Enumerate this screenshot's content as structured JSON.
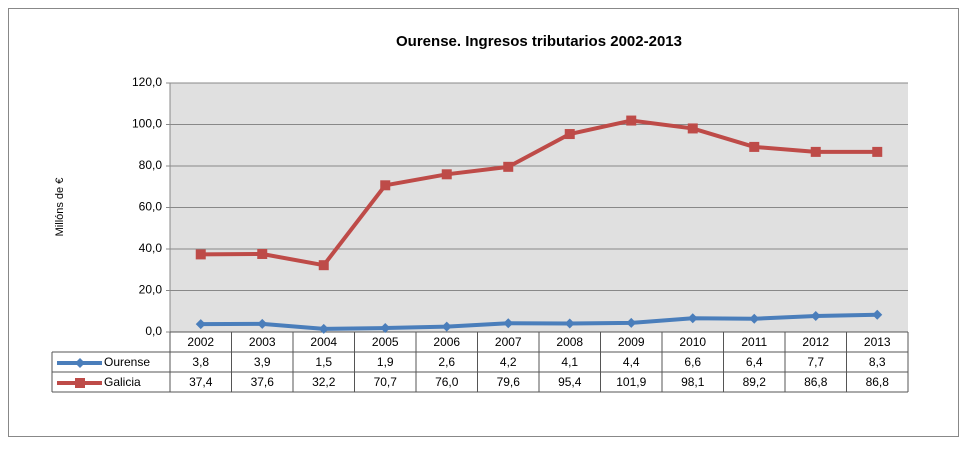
{
  "chart_data": {
    "type": "line",
    "title": "Ourense. Ingresos tributarios  2002-2013",
    "y_label": "Millóns de €",
    "categories": [
      "2002",
      "2003",
      "2004",
      "2005",
      "2006",
      "2007",
      "2008",
      "2009",
      "2010",
      "2011",
      "2012",
      "2013"
    ],
    "series": [
      {
        "name": "Ourense",
        "color": "#4a7ebb",
        "marker": "diamond",
        "values": [
          3.8,
          3.9,
          1.5,
          1.9,
          2.6,
          4.2,
          4.1,
          4.4,
          6.6,
          6.4,
          7.7,
          8.3
        ],
        "value_labels": [
          "3,8",
          "3,9",
          "1,5",
          "1,9",
          "2,6",
          "4,2",
          "4,1",
          "4,4",
          "6,6",
          "6,4",
          "7,7",
          "8,3"
        ]
      },
      {
        "name": "Galicia",
        "color": "#be4b48",
        "marker": "square",
        "values": [
          37.4,
          37.6,
          32.2,
          70.7,
          76.0,
          79.6,
          95.4,
          101.9,
          98.1,
          89.2,
          86.8,
          86.8
        ],
        "value_labels": [
          "37,4",
          "37,6",
          "32,2",
          "70,7",
          "76,0",
          "79,6",
          "95,4",
          "101,9",
          "98,1",
          "89,2",
          "86,8",
          "86,8"
        ]
      }
    ],
    "ylim": [
      0,
      120
    ],
    "yticks": [
      {
        "value": 0,
        "label": "0,0"
      },
      {
        "value": 20,
        "label": "20,0"
      },
      {
        "value": 40,
        "label": "40,0"
      },
      {
        "value": 60,
        "label": "60,0"
      },
      {
        "value": 80,
        "label": "80,0"
      },
      {
        "value": 100,
        "label": "100,0"
      },
      {
        "value": 120,
        "label": "120,0"
      }
    ],
    "grid": true,
    "plot_background": "#e0e0e0"
  }
}
